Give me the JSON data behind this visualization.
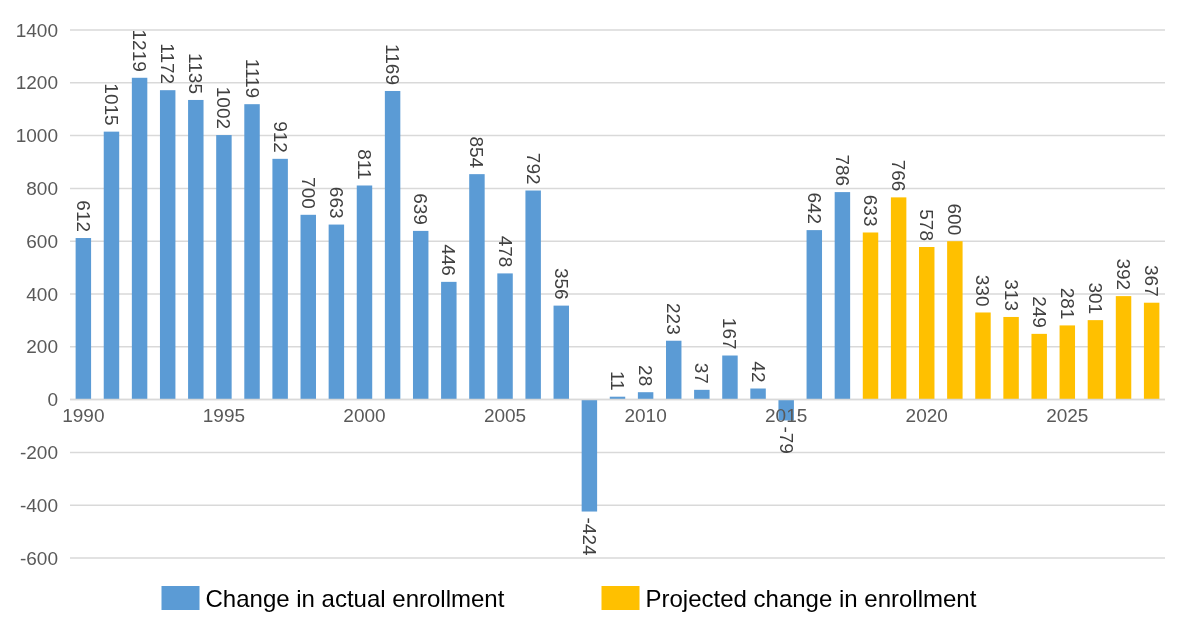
{
  "chart_data": {
    "type": "bar",
    "categories": [
      "1990",
      null,
      null,
      null,
      null,
      "1995",
      null,
      null,
      null,
      null,
      "2000",
      null,
      null,
      null,
      null,
      "2005",
      null,
      null,
      null,
      null,
      "2010",
      null,
      null,
      null,
      null,
      "2015",
      null,
      null,
      null,
      null,
      "2020",
      null,
      null,
      null,
      null,
      "2025",
      null,
      null,
      null
    ],
    "series": [
      {
        "name": "Change in actual enrollment",
        "color": "#5b9bd5",
        "values": [
          612,
          1015,
          1219,
          1172,
          1135,
          1002,
          1119,
          912,
          700,
          663,
          811,
          1169,
          639,
          446,
          854,
          478,
          792,
          356,
          -424,
          11,
          28,
          223,
          37,
          167,
          42,
          -79,
          642,
          786,
          null,
          null,
          null,
          null,
          null,
          null,
          null,
          null,
          null,
          null,
          null
        ]
      },
      {
        "name": "Projected change in enrollment",
        "color": "#ffc000",
        "values": [
          null,
          null,
          null,
          null,
          null,
          null,
          null,
          null,
          null,
          null,
          null,
          null,
          null,
          null,
          null,
          null,
          null,
          null,
          null,
          null,
          null,
          null,
          null,
          null,
          null,
          null,
          null,
          null,
          633,
          766,
          578,
          600,
          330,
          313,
          249,
          281,
          301,
          392,
          367
        ]
      }
    ],
    "ylim": [
      -600,
      1400
    ],
    "yticks": [
      -600,
      -400,
      -200,
      0,
      200,
      400,
      600,
      800,
      1000,
      1200,
      1400
    ],
    "grid": "y",
    "legend": "bottom",
    "data_labels": true
  }
}
